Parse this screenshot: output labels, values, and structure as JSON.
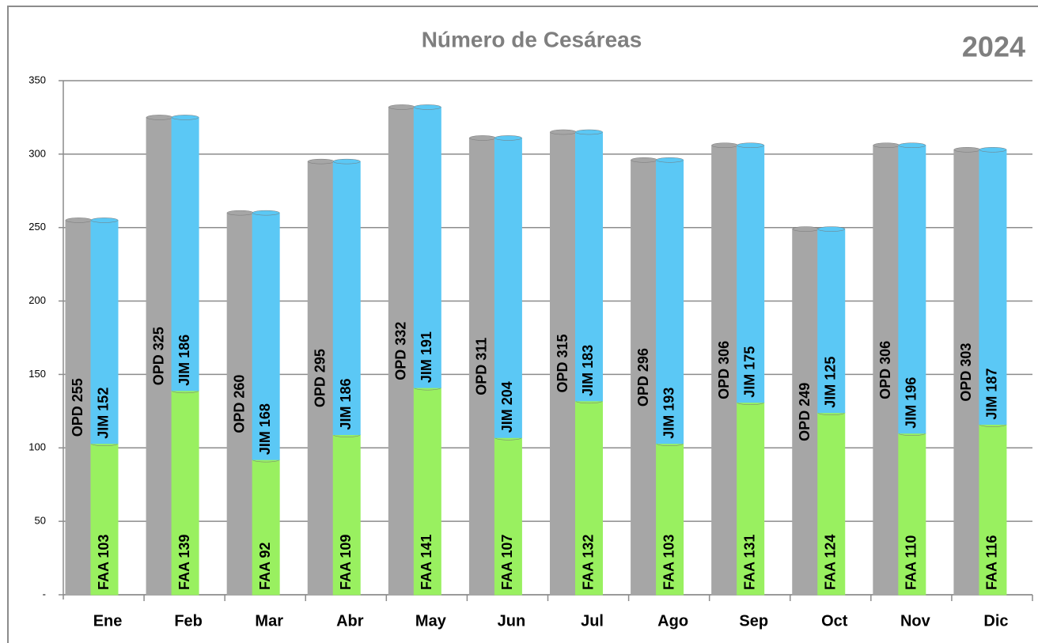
{
  "chart_data": {
    "type": "bar",
    "title": "Número de Cesáreas",
    "annotation": "2024",
    "categories": [
      "Ene",
      "Feb",
      "Mar",
      "Abr",
      "May",
      "Jun",
      "Jul",
      "Ago",
      "Sep",
      "Oct",
      "Nov",
      "Dic"
    ],
    "series": [
      {
        "name": "OPD",
        "color": "#a6a6a6",
        "stack": "left",
        "label_position": "center",
        "values": [
          255,
          325,
          260,
          295,
          332,
          311,
          315,
          296,
          306,
          249,
          306,
          303
        ],
        "value_labels": [
          "OPD 255",
          "OPD 325",
          "OPD 260",
          "OPD 295",
          "OPD 332",
          "OPD 311",
          "OPD 315",
          "OPD 296",
          "OPD 306",
          "OPD 249",
          "OPD 306",
          "OPD 303"
        ]
      },
      {
        "name": "FAA",
        "color": "#99f060",
        "stack": "right",
        "label_position": "base",
        "values": [
          103,
          139,
          92,
          109,
          141,
          107,
          132,
          103,
          131,
          124,
          110,
          116
        ],
        "value_labels": [
          "FAA 103",
          "FAA 139",
          "FAA 92",
          "FAA 109",
          "FAA 141",
          "FAA 107",
          "FAA 132",
          "FAA 103",
          "FAA 131",
          "FAA 124",
          "FAA 110",
          "FAA 116"
        ]
      },
      {
        "name": "JIM",
        "color": "#5bc8f5",
        "stack": "right",
        "label_position": "base",
        "values": [
          152,
          186,
          168,
          186,
          191,
          204,
          183,
          193,
          175,
          125,
          196,
          187
        ],
        "value_labels": [
          "JIM 152",
          "JIM 186",
          "JIM 168",
          "JIM 186",
          "JIM 191",
          "JIM 204",
          "JIM 183",
          "JIM 193",
          "JIM 175",
          "JIM 125",
          "JIM 196",
          "JIM 187"
        ]
      }
    ],
    "ylim": [
      0,
      350
    ],
    "yticks": [
      {
        "value": 0,
        "label": "-"
      },
      50,
      100,
      150,
      200,
      250,
      300,
      350
    ],
    "grid": true
  }
}
